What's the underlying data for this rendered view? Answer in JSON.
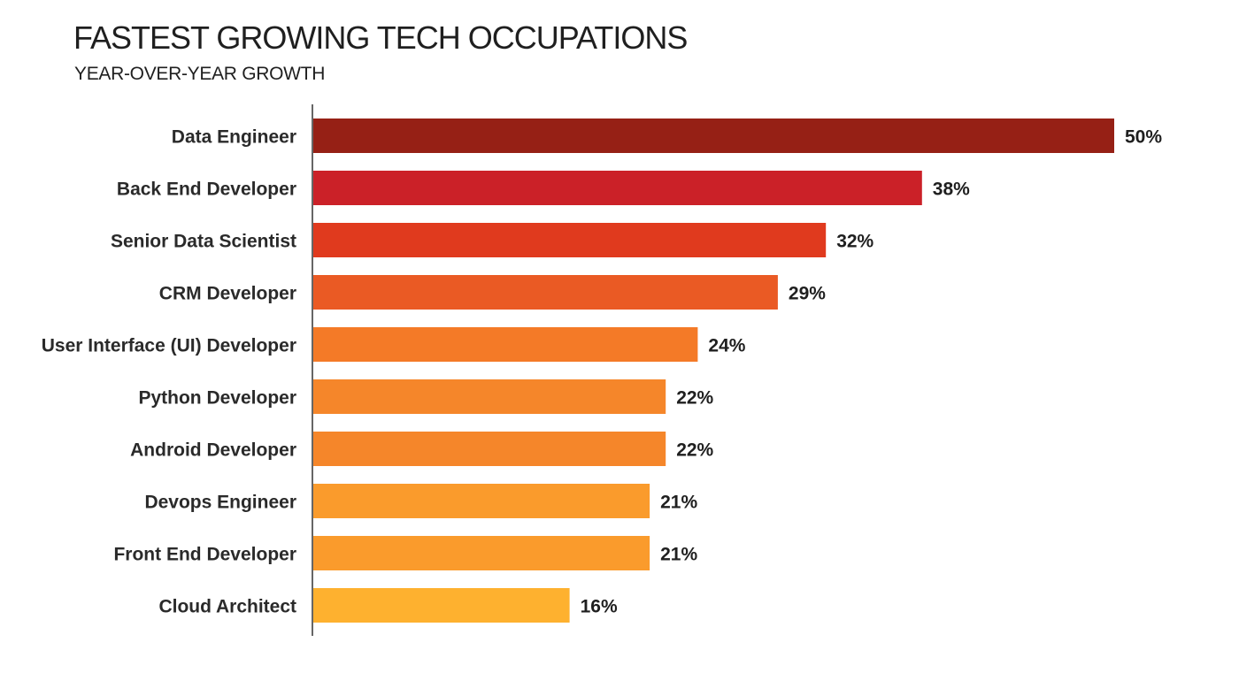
{
  "chart_data": {
    "type": "bar",
    "orientation": "horizontal",
    "title": "FASTEST GROWING TECH OCCUPATIONS",
    "subtitle": "YEAR-OVER-YEAR GROWTH",
    "categories": [
      "Data Engineer",
      "Back End Developer",
      "Senior Data Scientist",
      "CRM Developer",
      "User Interface (UI) Developer",
      "Python Developer",
      "Android Developer",
      "Devops Engineer",
      "Front End Developer",
      "Cloud Architect"
    ],
    "values": [
      50,
      38,
      32,
      29,
      24,
      22,
      22,
      21,
      21,
      16
    ],
    "value_labels": [
      "50%",
      "38%",
      "32%",
      "29%",
      "24%",
      "22%",
      "22%",
      "21%",
      "21%",
      "16%"
    ],
    "colors": [
      "#962015",
      "#cb2128",
      "#e03a1e",
      "#ea5a24",
      "#f47a27",
      "#f5862a",
      "#f5862a",
      "#fa9b2c",
      "#fa9b2c",
      "#feb12f"
    ],
    "xlim": [
      0,
      50
    ],
    "highlight_category": "Data Engineer",
    "grid": false,
    "legend": "none"
  }
}
